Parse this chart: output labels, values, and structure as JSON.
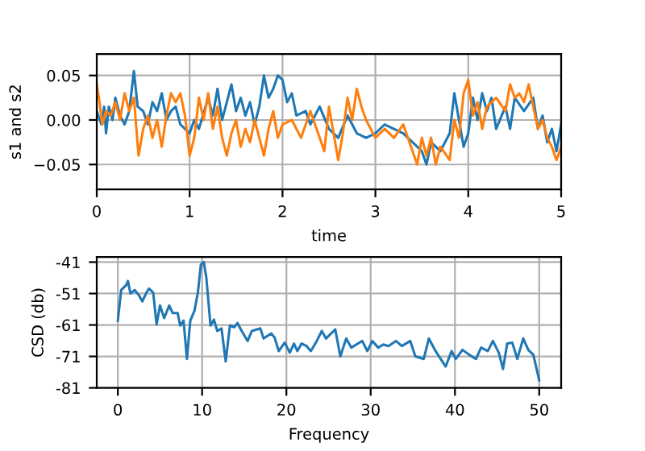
{
  "chart_data": [
    {
      "type": "line",
      "xlabel": "time",
      "ylabel": "s1 and s2",
      "xlim": [
        0,
        5
      ],
      "xticks": [
        0,
        1,
        2,
        3,
        4,
        5
      ],
      "ylim": [
        -0.078,
        0.074
      ],
      "yticks": [
        {
          "value": -0.05,
          "label": "−0.05"
        },
        {
          "value": 0,
          "label": "0.00"
        },
        {
          "value": 0.05,
          "label": "0.05"
        }
      ],
      "grid": true,
      "series": [
        {
          "color": "#1f77b4",
          "x": [
            0,
            0.05,
            0.08,
            0.1,
            0.13,
            0.17,
            0.2,
            0.25,
            0.3,
            0.35,
            0.4,
            0.44,
            0.5,
            0.55,
            0.6,
            0.65,
            0.7,
            0.75,
            0.8,
            0.85,
            0.9,
            1.0,
            1.05,
            1.1,
            1.2,
            1.25,
            1.3,
            1.35,
            1.4,
            1.45,
            1.5,
            1.55,
            1.6,
            1.65,
            1.7,
            1.75,
            1.8,
            1.85,
            1.9,
            1.95,
            2.0,
            2.05,
            2.1,
            2.15,
            2.25,
            2.3,
            2.4,
            2.5,
            2.6,
            2.7,
            2.8,
            2.9,
            3.0,
            3.1,
            3.2,
            3.3,
            3.4,
            3.5,
            3.55,
            3.6,
            3.7,
            3.8,
            3.85,
            3.9,
            3.95,
            4.0,
            4.05,
            4.1,
            4.15,
            4.2,
            4.25,
            4.3,
            4.4,
            4.45,
            4.5,
            4.6,
            4.7,
            4.75,
            4.8,
            4.85,
            4.9,
            4.95,
            5.0
          ],
          "values": [
            0.01,
            -0.005,
            0.015,
            -0.015,
            0.015,
            0.0,
            0.025,
            0.005,
            -0.005,
            0.01,
            0.055,
            0.015,
            0.01,
            -0.005,
            0.02,
            0.01,
            0.03,
            0.0,
            0.01,
            0.015,
            -0.005,
            -0.015,
            0.0,
            -0.01,
            0.025,
            0.005,
            0.035,
            0.0,
            0.02,
            0.04,
            0.01,
            0.025,
            0.005,
            0.02,
            -0.005,
            0.015,
            0.05,
            0.025,
            0.035,
            0.05,
            0.045,
            0.02,
            0.03,
            0.005,
            0.01,
            -0.005,
            0.015,
            -0.01,
            -0.02,
            0.005,
            -0.015,
            -0.02,
            -0.015,
            -0.005,
            -0.01,
            -0.015,
            -0.025,
            -0.035,
            -0.05,
            -0.025,
            -0.035,
            -0.015,
            0.03,
            0.0,
            -0.03,
            -0.015,
            0.025,
            0.0,
            0.03,
            0.01,
            0.025,
            -0.01,
            0.015,
            -0.01,
            0.025,
            0.01,
            0.025,
            -0.01,
            0.005,
            -0.025,
            -0.01,
            -0.035,
            -0.005
          ]
        },
        {
          "color": "#ff7f0e",
          "x": [
            0,
            0.03,
            0.06,
            0.1,
            0.15,
            0.2,
            0.25,
            0.3,
            0.35,
            0.4,
            0.45,
            0.5,
            0.55,
            0.6,
            0.65,
            0.7,
            0.75,
            0.8,
            0.85,
            0.9,
            0.95,
            1.0,
            1.05,
            1.1,
            1.15,
            1.2,
            1.25,
            1.3,
            1.35,
            1.4,
            1.45,
            1.5,
            1.55,
            1.6,
            1.65,
            1.7,
            1.75,
            1.8,
            1.85,
            1.9,
            1.95,
            2.0,
            2.1,
            2.2,
            2.3,
            2.4,
            2.45,
            2.5,
            2.55,
            2.6,
            2.65,
            2.7,
            2.75,
            2.8,
            2.85,
            2.9,
            3.0,
            3.1,
            3.2,
            3.3,
            3.4,
            3.45,
            3.5,
            3.55,
            3.6,
            3.65,
            3.7,
            3.8,
            3.85,
            3.9,
            3.95,
            4.0,
            4.05,
            4.1,
            4.15,
            4.2,
            4.3,
            4.4,
            4.45,
            4.5,
            4.55,
            4.6,
            4.65,
            4.7,
            4.75,
            4.8,
            4.85,
            4.9,
            4.95,
            5.0
          ],
          "values": [
            0.04,
            0.02,
            -0.005,
            0.01,
            0.005,
            0.02,
            0.0,
            0.03,
            0.01,
            0.025,
            -0.04,
            -0.01,
            0.005,
            -0.02,
            0.0,
            -0.03,
            0.005,
            0.03,
            0.02,
            0.03,
            0.005,
            -0.04,
            -0.02,
            0.025,
            0.0,
            0.03,
            -0.01,
            0.015,
            -0.02,
            -0.04,
            -0.015,
            0.0,
            -0.03,
            -0.01,
            -0.025,
            0.0,
            -0.02,
            -0.04,
            -0.01,
            0.01,
            -0.02,
            -0.005,
            0.0,
            -0.02,
            0.01,
            -0.02,
            -0.035,
            0.015,
            -0.015,
            -0.045,
            -0.015,
            0.025,
            0.0,
            0.035,
            0.015,
            0.0,
            -0.02,
            -0.01,
            -0.02,
            -0.005,
            -0.035,
            -0.05,
            -0.02,
            -0.04,
            -0.02,
            -0.05,
            -0.03,
            -0.045,
            0.0,
            -0.02,
            0.03,
            0.045,
            0.005,
            0.02,
            -0.01,
            0.015,
            0.025,
            0.01,
            0.04,
            0.025,
            0.03,
            0.02,
            0.04,
            0.015,
            -0.01,
            0.0,
            -0.02,
            -0.03,
            -0.045,
            -0.03
          ]
        }
      ]
    },
    {
      "type": "line",
      "xlabel": "Frequency",
      "ylabel": "CSD (db)",
      "xlim": [
        -2.5,
        52.6
      ],
      "xticks": [
        0,
        10,
        20,
        30,
        40,
        50
      ],
      "ylim": [
        -81,
        -39.4
      ],
      "yticks": [
        -81,
        -71,
        -61,
        -51,
        -41
      ],
      "grid": true,
      "series": [
        {
          "color": "#1f77b4",
          "x": [
            0,
            0.4,
            1.0,
            1.2,
            1.5,
            2.0,
            2.5,
            2.9,
            3.4,
            3.7,
            4.2,
            4.6,
            5.0,
            5.5,
            6.1,
            6.5,
            7.1,
            7.4,
            7.8,
            8.2,
            8.6,
            9.1,
            9.5,
            9.85,
            10.2,
            10.5,
            11.0,
            11.4,
            11.8,
            12.3,
            12.8,
            13.3,
            13.8,
            14.2,
            14.7,
            15.4,
            15.9,
            16.9,
            17.3,
            18.2,
            18.6,
            19.1,
            19.8,
            20.4,
            20.9,
            21.3,
            21.8,
            22.4,
            22.9,
            23.6,
            24.2,
            24.7,
            25.3,
            25.8,
            26.4,
            27.1,
            27.7,
            28.3,
            29.0,
            29.6,
            30.2,
            30.9,
            31.5,
            32.1,
            33.0,
            33.7,
            34.7,
            35.3,
            36.3,
            36.9,
            37.7,
            38.3,
            38.9,
            39.6,
            40.1,
            40.9,
            41.7,
            42.5,
            43.1,
            43.9,
            44.5,
            45.2,
            45.7,
            46.2,
            46.8,
            47.4,
            48.1,
            48.7,
            49.3,
            50.0
          ],
          "values": [
            -59.6,
            -49.9,
            -48.3,
            -47,
            -51,
            -49.9,
            -51.5,
            -53.5,
            -50.7,
            -49.4,
            -50.7,
            -60.8,
            -54.8,
            -58.8,
            -54.8,
            -57.2,
            -57.2,
            -61.2,
            -59.6,
            -71.8,
            -59.6,
            -56.4,
            -50.7,
            -41.8,
            -41,
            -45.9,
            -61.2,
            -59.3,
            -62.9,
            -62.1,
            -72.6,
            -61.2,
            -61.7,
            -60.4,
            -62.9,
            -66.1,
            -62.9,
            -62.1,
            -65.3,
            -63.7,
            -65,
            -69.3,
            -66.6,
            -69.8,
            -66.9,
            -69.3,
            -66.9,
            -67.7,
            -69.3,
            -66.1,
            -62.9,
            -65.3,
            -63.7,
            -62.4,
            -71,
            -65.3,
            -68.2,
            -67.2,
            -66.1,
            -69.3,
            -66.1,
            -68.2,
            -67.2,
            -67.7,
            -66.1,
            -67.7,
            -66.1,
            -71,
            -71.8,
            -65.3,
            -69.3,
            -71.8,
            -74.2,
            -69.3,
            -71.8,
            -68.9,
            -70.5,
            -71.8,
            -68.2,
            -69.3,
            -66.1,
            -69.8,
            -75,
            -66.9,
            -66.6,
            -71.8,
            -65.3,
            -68.9,
            -70.5,
            -78.6
          ]
        }
      ]
    }
  ]
}
